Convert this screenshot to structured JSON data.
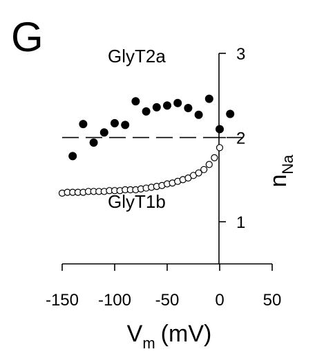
{
  "panel_label": "G",
  "chart_data": {
    "type": "scatter",
    "xlabel": "V",
    "xlabel_sub": "m",
    "xlabel_unit": "(mV)",
    "ylabel": "n",
    "ylabel_sub": "Na",
    "xlim": [
      -150,
      50
    ],
    "ylim": [
      0.5,
      3
    ],
    "x_ticks": [
      -150,
      -100,
      -50,
      0,
      50
    ],
    "x_tick_labels": [
      "-150",
      "-100",
      "-50",
      "0",
      "50"
    ],
    "y_ticks": [
      1,
      2,
      3
    ],
    "y_tick_labels": [
      "1",
      "2",
      "3"
    ],
    "reference_line": {
      "y": 2,
      "style": "dashed"
    },
    "series": [
      {
        "name": "GlyT2a",
        "marker": "filled-circle",
        "x": [
          -140,
          -130,
          -120,
          -110,
          -100,
          -90,
          -80,
          -70,
          -60,
          -50,
          -40,
          -30,
          -20,
          -10,
          0,
          10
        ],
        "y": [
          1.78,
          2.16,
          1.94,
          2.06,
          2.17,
          2.15,
          2.43,
          2.31,
          2.36,
          2.38,
          2.41,
          2.35,
          2.27,
          2.46,
          2.1,
          2.28
        ]
      },
      {
        "name": "GlyT1b",
        "marker": "open-circle",
        "x": [
          -150,
          -145,
          -140,
          -135,
          -130,
          -125,
          -120,
          -115,
          -110,
          -105,
          -100,
          -95,
          -90,
          -85,
          -80,
          -75,
          -70,
          -65,
          -60,
          -55,
          -50,
          -45,
          -40,
          -35,
          -30,
          -25,
          -20,
          -15,
          -10,
          -5,
          0
        ],
        "y": [
          1.34,
          1.35,
          1.35,
          1.35,
          1.35,
          1.36,
          1.36,
          1.36,
          1.36,
          1.37,
          1.37,
          1.37,
          1.38,
          1.38,
          1.38,
          1.39,
          1.4,
          1.41,
          1.42,
          1.43,
          1.45,
          1.46,
          1.48,
          1.5,
          1.52,
          1.55,
          1.58,
          1.62,
          1.68,
          1.76,
          1.88
        ]
      }
    ]
  }
}
